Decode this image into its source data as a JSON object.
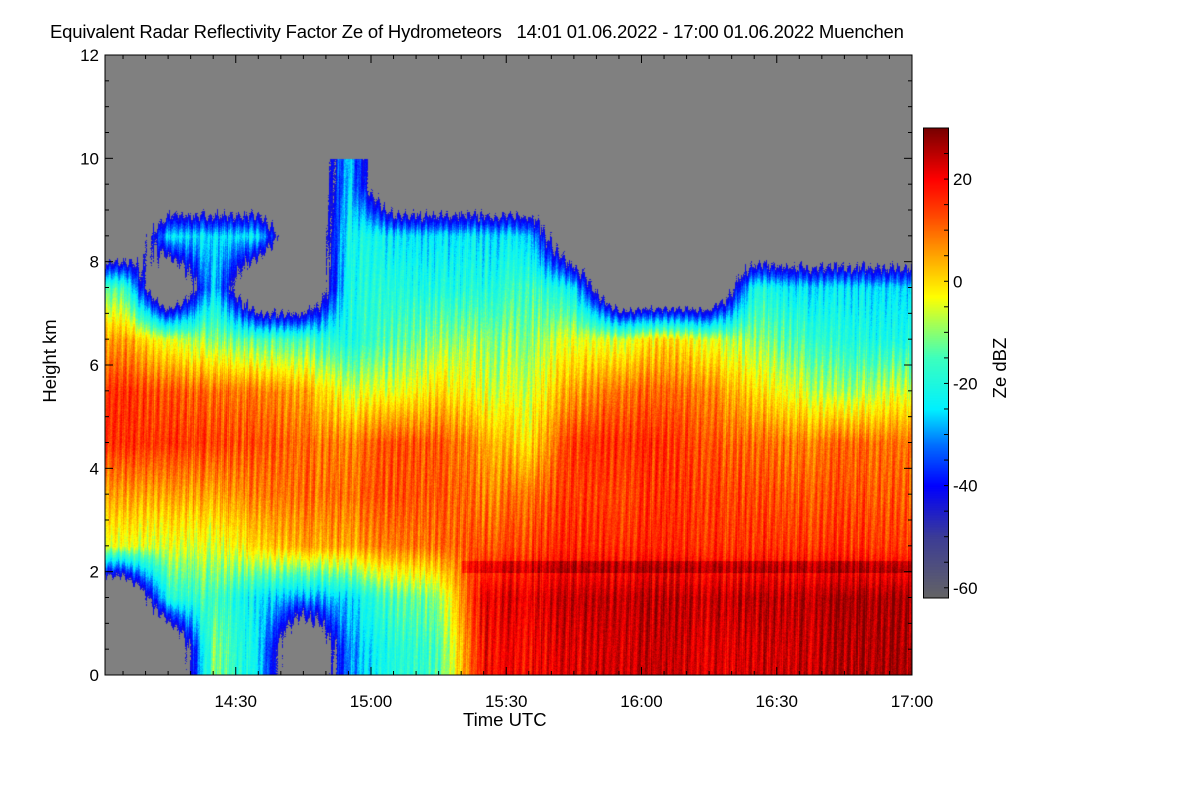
{
  "chart_data": {
    "type": "heatmap",
    "title": "Equivalent Radar Reflectivity Factor Ze of Hydrometeors   14:01 01.06.2022 - 17:00 01.06.2022 Muenchen",
    "xlabel": "Time UTC",
    "ylabel": "Height km",
    "colorbar_label": "Ze dBZ",
    "xlim_minutes_utc": [
      841,
      1020
    ],
    "ylim": [
      0,
      12
    ],
    "zlim": [
      -62,
      30
    ],
    "x_ticks": [
      {
        "label": "14:30",
        "minutes": 870
      },
      {
        "label": "15:00",
        "minutes": 900
      },
      {
        "label": "15:30",
        "minutes": 930
      },
      {
        "label": "16:00",
        "minutes": 960
      },
      {
        "label": "16:30",
        "minutes": 990
      },
      {
        "label": "17:00",
        "minutes": 1020
      }
    ],
    "y_ticks": [
      "0",
      "2",
      "4",
      "6",
      "8",
      "10",
      "12"
    ],
    "colorbar_ticks": [
      "20",
      "0",
      "-20",
      "-40",
      "-60"
    ],
    "colorbar_tick_values": [
      20,
      0,
      -20,
      -40,
      -60
    ],
    "no_echo_color": "#808080",
    "grid_times_utc": [
      "14:05",
      "14:15",
      "14:25",
      "14:35",
      "14:45",
      "14:55",
      "15:05",
      "15:15",
      "15:25",
      "15:35",
      "15:45",
      "15:55",
      "16:05",
      "16:15",
      "16:25",
      "16:35",
      "16:45",
      "16:55"
    ],
    "grid_heights_km": [
      0.5,
      1.5,
      2.5,
      3.5,
      4.5,
      5.5,
      6.5,
      7.5,
      8.5,
      9.5
    ],
    "dbz_grid_by_time": [
      [
        null,
        null,
        -5,
        5,
        15,
        15,
        5,
        -15,
        null,
        null
      ],
      [
        null,
        -20,
        -5,
        5,
        15,
        12,
        -5,
        null,
        -25,
        null
      ],
      [
        -10,
        -15,
        -5,
        5,
        14,
        10,
        -10,
        -25,
        -25,
        null
      ],
      [
        -25,
        -25,
        0,
        8,
        12,
        8,
        -15,
        null,
        -25,
        null
      ],
      [
        null,
        -30,
        5,
        10,
        10,
        5,
        -15,
        null,
        null,
        null
      ],
      [
        -30,
        -25,
        5,
        10,
        8,
        -5,
        -20,
        -20,
        -20,
        -25
      ],
      [
        -20,
        -15,
        8,
        12,
        12,
        -5,
        -15,
        -20,
        -25,
        null
      ],
      [
        -15,
        -10,
        10,
        12,
        12,
        0,
        -10,
        -20,
        -25,
        null
      ],
      [
        20,
        22,
        12,
        8,
        5,
        -5,
        -10,
        -20,
        -25,
        null
      ],
      [
        20,
        22,
        14,
        10,
        0,
        -5,
        -10,
        -15,
        -25,
        null
      ],
      [
        22,
        24,
        16,
        14,
        15,
        5,
        -5,
        -25,
        null,
        null
      ],
      [
        24,
        25,
        16,
        14,
        16,
        10,
        -5,
        null,
        null,
        null
      ],
      [
        24,
        25,
        16,
        15,
        15,
        10,
        0,
        null,
        null,
        null
      ],
      [
        22,
        24,
        15,
        14,
        12,
        8,
        -5,
        null,
        null,
        null
      ],
      [
        23,
        25,
        15,
        13,
        10,
        0,
        -10,
        -20,
        null,
        null
      ],
      [
        24,
        25,
        15,
        12,
        8,
        -5,
        -15,
        -25,
        null,
        null
      ],
      [
        25,
        26,
        15,
        12,
        10,
        -10,
        -20,
        -25,
        null,
        null
      ],
      [
        27,
        27,
        15,
        12,
        10,
        -5,
        -20,
        -25,
        null,
        null
      ]
    ]
  }
}
